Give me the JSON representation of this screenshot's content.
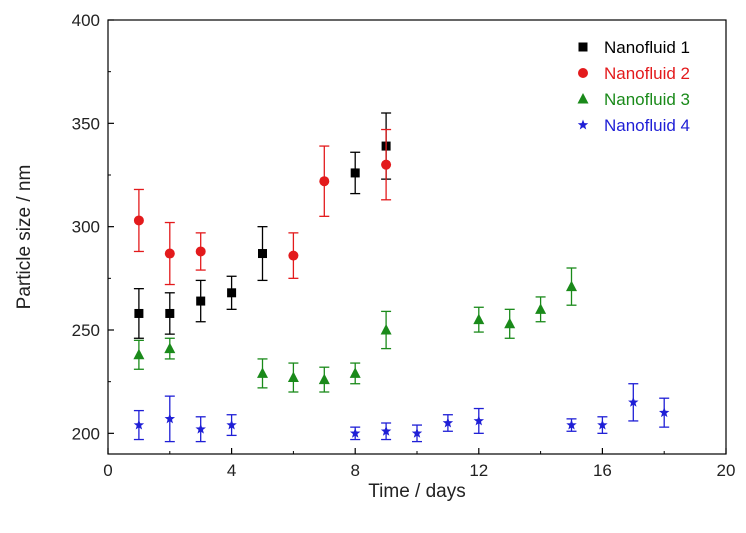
{
  "chart_data": {
    "type": "scatter",
    "title": "",
    "xlabel": "Time / days",
    "ylabel": "Particle size / nm",
    "xlim": [
      0,
      20
    ],
    "ylim": [
      190,
      400
    ],
    "xticks": [
      0,
      4,
      8,
      12,
      16,
      20
    ],
    "yticks": [
      200,
      250,
      300,
      350,
      400
    ],
    "grid": false,
    "legend_position": "top-right",
    "series": [
      {
        "name": "Nanofluid 1",
        "color": "#000000",
        "marker": "square",
        "points": [
          {
            "x": 1,
            "y": 258,
            "err": 12
          },
          {
            "x": 2,
            "y": 258,
            "err": 10
          },
          {
            "x": 3,
            "y": 264,
            "err": 10
          },
          {
            "x": 4,
            "y": 268,
            "err": 8
          },
          {
            "x": 5,
            "y": 287,
            "err": 13
          },
          {
            "x": 8,
            "y": 326,
            "err": 10
          },
          {
            "x": 9,
            "y": 339,
            "err": 16
          }
        ]
      },
      {
        "name": "Nanofluid 2",
        "color": "#e31a1c",
        "marker": "circle",
        "points": [
          {
            "x": 1,
            "y": 303,
            "err": 15
          },
          {
            "x": 2,
            "y": 287,
            "err": 15
          },
          {
            "x": 3,
            "y": 288,
            "err": 9
          },
          {
            "x": 6,
            "y": 286,
            "err": 11
          },
          {
            "x": 7,
            "y": 322,
            "err": 17
          },
          {
            "x": 9,
            "y": 330,
            "err": 17
          }
        ]
      },
      {
        "name": "Nanofluid 3",
        "color": "#1a8a1a",
        "marker": "triangle",
        "points": [
          {
            "x": 1,
            "y": 238,
            "err": 7
          },
          {
            "x": 2,
            "y": 241,
            "err": 5
          },
          {
            "x": 5,
            "y": 229,
            "err": 7
          },
          {
            "x": 6,
            "y": 227,
            "err": 7
          },
          {
            "x": 7,
            "y": 226,
            "err": 6
          },
          {
            "x": 8,
            "y": 229,
            "err": 5
          },
          {
            "x": 9,
            "y": 250,
            "err": 9
          },
          {
            "x": 12,
            "y": 255,
            "err": 6
          },
          {
            "x": 13,
            "y": 253,
            "err": 7
          },
          {
            "x": 14,
            "y": 260,
            "err": 6
          },
          {
            "x": 15,
            "y": 271,
            "err": 9
          }
        ]
      },
      {
        "name": "Nanofluid 4",
        "color": "#1f1fd6",
        "marker": "star",
        "points": [
          {
            "x": 1,
            "y": 204,
            "err": 7
          },
          {
            "x": 2,
            "y": 207,
            "err": 11
          },
          {
            "x": 3,
            "y": 202,
            "err": 6
          },
          {
            "x": 4,
            "y": 204,
            "err": 5
          },
          {
            "x": 8,
            "y": 200,
            "err": 3
          },
          {
            "x": 9,
            "y": 201,
            "err": 4
          },
          {
            "x": 10,
            "y": 200,
            "err": 4
          },
          {
            "x": 11,
            "y": 205,
            "err": 4
          },
          {
            "x": 12,
            "y": 206,
            "err": 6
          },
          {
            "x": 15,
            "y": 204,
            "err": 3
          },
          {
            "x": 16,
            "y": 204,
            "err": 4
          },
          {
            "x": 17,
            "y": 215,
            "err": 9
          },
          {
            "x": 18,
            "y": 210,
            "err": 7
          }
        ]
      }
    ]
  }
}
